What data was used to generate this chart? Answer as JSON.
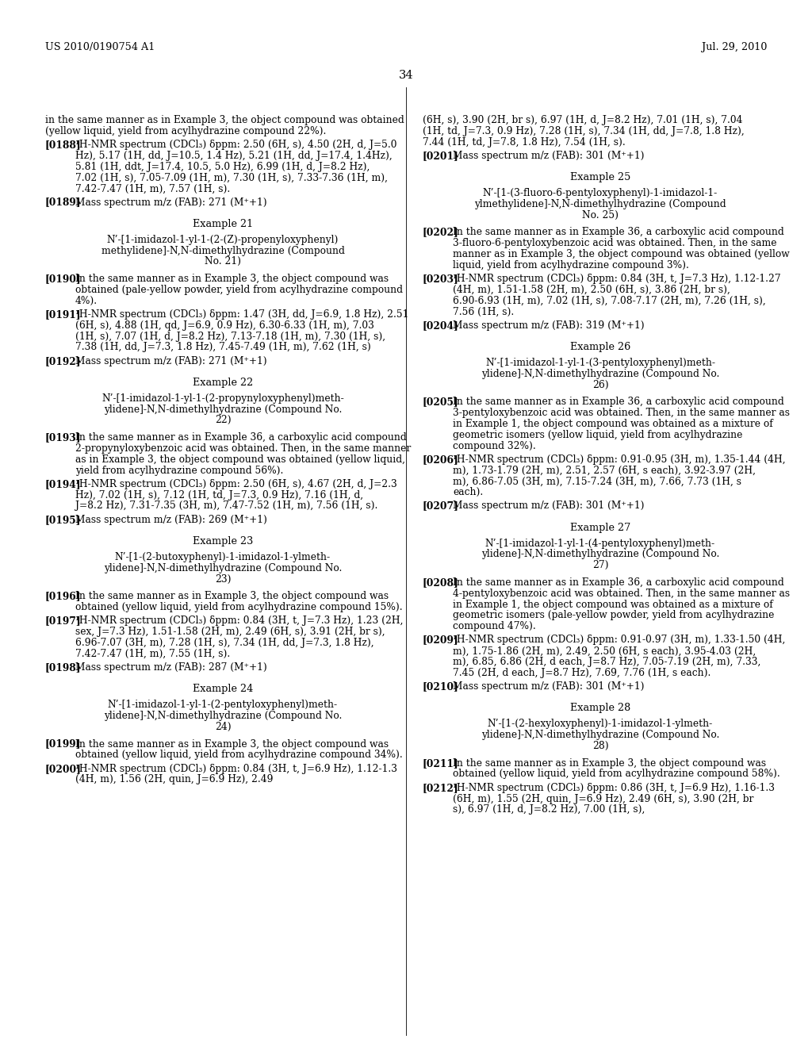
{
  "background_color": "#ffffff",
  "header_left": "US 2010/0190754 A1",
  "header_right": "Jul. 29, 2010",
  "page_number": "34",
  "left_column": [
    {
      "type": "body",
      "text": "in the same manner as in Example 3, the object compound was obtained (yellow liquid, yield from acylhydrazine compound 22%)."
    },
    {
      "type": "para",
      "tag": "[0188]",
      "text": "¹H-NMR spectrum (CDCl₃) δppm: 2.50 (6H, s), 4.50 (2H, d, J=5.0 Hz), 5.17 (1H, dd, J=10.5, 1.4 Hz), 5.21 (1H, dd, J=17.4, 1.4Hz), 5.81 (1H, ddt, J=17.4, 10.5, 5.0 Hz), 6.99 (1H, d, J=8.2 Hz), 7.02 (1H, s), 7.05-7.09 (1H, m), 7.30 (1H, s), 7.33-7.36 (1H, m), 7.42-7.47 (1H, m), 7.57 (1H, s)."
    },
    {
      "type": "para",
      "tag": "[0189]",
      "text": "Mass spectrum m/z (FAB): 271 (M⁺+1)"
    },
    {
      "type": "example_title",
      "text": "Example 21"
    },
    {
      "type": "compound_name",
      "text": "N’-[1-imidazol-1-yl-1-(2-(Z)-propenyloxyphenyl)\nmethylidene]-N,N-dimethylhydrazine (Compound\nNo. 21)"
    },
    {
      "type": "para",
      "tag": "[0190]",
      "text": "In the same manner as in Example 3, the object compound was obtained (pale-yellow powder, yield from acylhydrazine compound 4%)."
    },
    {
      "type": "para",
      "tag": "[0191]",
      "text": "¹H-NMR spectrum (CDCl₃) δppm: 1.47 (3H, dd, J=6.9, 1.8 Hz), 2.51 (6H, s), 4.88 (1H, qd, J=6.9, 0.9 Hz), 6.30-6.33 (1H, m), 7.03 (1H, s), 7.07 (1H, d, J=8.2 Hz), 7.13-7.18 (1H, m), 7.30 (1H, s), 7.38 (1H, dd, J=7.3, 1.8 Hz), 7.45-7.49 (1H, m), 7.62 (1H, s)"
    },
    {
      "type": "para",
      "tag": "[0192]",
      "text": "Mass spectrum m/z (FAB): 271 (M⁺+1)"
    },
    {
      "type": "example_title",
      "text": "Example 22"
    },
    {
      "type": "compound_name",
      "text": "N’-[1-imidazol-1-yl-1-(2-propynyloxyphenyl)meth-\nylidene]-N,N-dimethylhydrazine (Compound No.\n22)"
    },
    {
      "type": "para",
      "tag": "[0193]",
      "text": "In the same manner as in Example 36, a carboxylic acid compound 2-propynyloxybenzoic acid was obtained. Then, in the same manner as in Example 3, the object compound was obtained (yellow liquid, yield from acylhydrazine compound 56%)."
    },
    {
      "type": "para",
      "tag": "[0194]",
      "text": "¹H-NMR spectrum (CDCl₃) δppm: 2.50 (6H, s), 4.67 (2H, d, J=2.3 Hz), 7.02 (1H, s), 7.12 (1H, td, J=7.3, 0.9 Hz), 7.16 (1H, d, J=8.2 Hz), 7.31-7.35 (3H, m), 7.47-7.52 (1H, m), 7.56 (1H, s)."
    },
    {
      "type": "para",
      "tag": "[0195]",
      "text": "Mass spectrum m/z (FAB): 269 (M⁺+1)"
    },
    {
      "type": "example_title",
      "text": "Example 23"
    },
    {
      "type": "compound_name",
      "text": "N’-[1-(2-butoxyphenyl)-1-imidazol-1-ylmeth-\nylidene]-N,N-dimethylhydrazine (Compound No.\n23)"
    },
    {
      "type": "para",
      "tag": "[0196]",
      "text": "In the same manner as in Example 3, the object compound was obtained (yellow liquid, yield from acylhydrazine compound 15%)."
    },
    {
      "type": "para",
      "tag": "[0197]",
      "text": "¹H-NMR spectrum (CDCl₃) δppm: 0.84 (3H, t, J=7.3 Hz), 1.23 (2H, sex, J=7.3 Hz), 1.51-1.58 (2H, m), 2.49 (6H, s), 3.91 (2H, br s), 6.96-7.07 (3H, m), 7.28 (1H, s), 7.34 (1H, dd, J=7.3, 1.8 Hz), 7.42-7.47 (1H, m), 7.55 (1H, s)."
    },
    {
      "type": "para",
      "tag": "[0198]",
      "text": "Mass spectrum m/z (FAB): 287 (M⁺+1)"
    },
    {
      "type": "example_title",
      "text": "Example 24"
    },
    {
      "type": "compound_name",
      "text": "N’-[1-imidazol-1-yl-1-(2-pentyloxyphenyl)meth-\nylidene]-N,N-dimethylhydrazine (Compound No.\n24)"
    },
    {
      "type": "para",
      "tag": "[0199]",
      "text": "In the same manner as in Example 3, the object compound was obtained (yellow liquid, yield from acylhydrazine compound 34%)."
    },
    {
      "type": "para",
      "tag": "[0200]",
      "text": "¹H-NMR spectrum (CDCl₃) δppm: 0.84 (3H, t, J=6.9 Hz), 1.12-1.3 (4H, m), 1.56 (2H, quin, J=6.9 Hz), 2.49"
    }
  ],
  "right_column": [
    {
      "type": "body",
      "text": "(6H, s), 3.90 (2H, br s), 6.97 (1H, d, J=8.2 Hz), 7.01 (1H, s), 7.04 (1H, td, J=7.3, 0.9 Hz), 7.28 (1H, s), 7.34 (1H, dd, J=7.8, 1.8 Hz), 7.44 (1H, td, J=7.8, 1.8 Hz), 7.54 (1H, s)."
    },
    {
      "type": "para",
      "tag": "[0201]",
      "text": "Mass spectrum m/z (FAB): 301 (M⁺+1)"
    },
    {
      "type": "example_title",
      "text": "Example 25"
    },
    {
      "type": "compound_name",
      "text": "N’-[1-(3-fluoro-6-pentyloxyphenyl)-1-imidazol-1-\nylmethylidene]-N,N-dimethylhydrazine (Compound\nNo. 25)"
    },
    {
      "type": "para",
      "tag": "[0202]",
      "text": "In the same manner as in Example 36, a carboxylic acid compound 3-fluoro-6-pentyloxybenzoic acid was obtained. Then, in the same manner as in Example 3, the object compound was obtained (yellow liquid, yield from acylhydrazine compound 3%)."
    },
    {
      "type": "para",
      "tag": "[0203]",
      "text": "¹H-NMR spectrum (CDCl₃) δppm: 0.84 (3H, t, J=7.3 Hz), 1.12-1.27 (4H, m), 1.51-1.58 (2H, m), 2.50 (6H, s), 3.86 (2H, br s), 6.90-6.93 (1H, m), 7.02 (1H, s), 7.08-7.17 (2H, m), 7.26 (1H, s), 7.56 (1H, s)."
    },
    {
      "type": "para",
      "tag": "[0204]",
      "text": "Mass spectrum m/z (FAB): 319 (M⁺+1)"
    },
    {
      "type": "example_title",
      "text": "Example 26"
    },
    {
      "type": "compound_name",
      "text": "N’-[1-imidazol-1-yl-1-(3-pentyloxyphenyl)meth-\nylidene]-N,N-dimethylhydrazine (Compound No.\n26)"
    },
    {
      "type": "para",
      "tag": "[0205]",
      "text": "In the same manner as in Example 36, a carboxylic acid compound 3-pentyloxybenzoic acid was obtained. Then, in the same manner as in Example 1, the object compound was obtained as a mixture of geometric isomers (yellow liquid, yield from acylhydrazine compound 32%)."
    },
    {
      "type": "para",
      "tag": "[0206]",
      "text": "¹H-NMR spectrum (CDCl₃) δppm: 0.91-0.95 (3H, m), 1.35-1.44 (4H, m), 1.73-1.79 (2H, m), 2.51, 2.57 (6H, s each), 3.92-3.97 (2H, m), 6.86-7.05 (3H, m), 7.15-7.24 (3H, m), 7.66, 7.73 (1H, s each)."
    },
    {
      "type": "para",
      "tag": "[0207]",
      "text": "Mass spectrum m/z (FAB): 301 (M⁺+1)"
    },
    {
      "type": "example_title",
      "text": "Example 27"
    },
    {
      "type": "compound_name",
      "text": "N’-[1-imidazol-1-yl-1-(4-pentyloxyphenyl)meth-\nylidene]-N,N-dimethylhydrazine (Compound No.\n27)"
    },
    {
      "type": "para",
      "tag": "[0208]",
      "text": "In the same manner as in Example 36, a carboxylic acid compound 4-pentyloxybenzoic acid was obtained. Then, in the same manner as in Example 1, the object compound was obtained as a mixture of geometric isomers (pale-yellow powder, yield from acylhydrazine compound 47%)."
    },
    {
      "type": "para",
      "tag": "[0209]",
      "text": "¹H-NMR spectrum (CDCl₃) δppm: 0.91-0.97 (3H, m), 1.33-1.50 (4H, m), 1.75-1.86 (2H, m), 2.49, 2.50 (6H, s each), 3.95-4.03 (2H, m), 6.85, 6.86 (2H, d each, J=8.7 Hz), 7.05-7.19 (2H, m), 7.33, 7.45 (2H, d each, J=8.7 Hz), 7.69, 7.76 (1H, s each)."
    },
    {
      "type": "para",
      "tag": "[0210]",
      "text": "Mass spectrum m/z (FAB): 301 (M⁺+1)"
    },
    {
      "type": "example_title",
      "text": "Example 28"
    },
    {
      "type": "compound_name",
      "text": "N’-[1-(2-hexyloxyphenyl)-1-imidazol-1-ylmeth-\nylidene]-N,N-dimethylhydrazine (Compound No.\n28)"
    },
    {
      "type": "para",
      "tag": "[0211]",
      "text": "In the same manner as in Example 3, the object compound was obtained (yellow liquid, yield from acylhydrazine compound 58%)."
    },
    {
      "type": "para",
      "tag": "[0212]",
      "text": "¹H-NMR spectrum (CDCl₃) δppm: 0.86 (3H, t, J=6.9 Hz), 1.16-1.3 (6H, m), 1.55 (2H, quin, J=6.9 Hz), 2.49 (6H, s), 3.90 (2H, br s), 6.97 (1H, d, J=8.2 Hz), 7.00 (1H, s),"
    }
  ]
}
